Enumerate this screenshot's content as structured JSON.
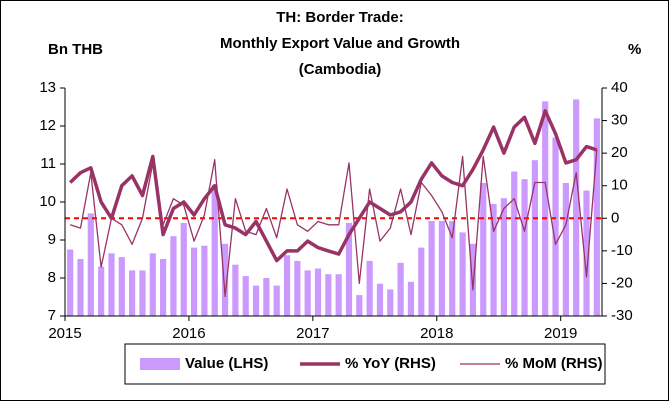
{
  "chart_data": {
    "type": "bar_line",
    "title": [
      "TH: Border Trade:",
      "Monthly Export Value and Growth",
      "(Cambodia)"
    ],
    "y_label": "Bn THB",
    "y2_label": "%",
    "categories": [
      "2015",
      null,
      null,
      null,
      null,
      null,
      null,
      null,
      null,
      null,
      null,
      null,
      "2016",
      null,
      null,
      null,
      null,
      null,
      null,
      null,
      null,
      null,
      null,
      null,
      "2017",
      null,
      null,
      null,
      null,
      null,
      null,
      null,
      null,
      null,
      null,
      null,
      "2018",
      null,
      null,
      null,
      null,
      null,
      null,
      null,
      null,
      null,
      null,
      null,
      "2019",
      null,
      null,
      null
    ],
    "series": [
      {
        "name": "Value (LHS)",
        "kind": "bar",
        "color": "#cc99ff",
        "values": [
          8.75,
          8.5,
          9.7,
          8.3,
          8.65,
          8.55,
          8.2,
          8.2,
          8.65,
          8.5,
          9.1,
          9.45,
          8.8,
          8.85,
          10.45,
          8.9,
          8.35,
          8.05,
          7.8,
          8.0,
          7.8,
          8.6,
          8.45,
          8.2,
          8.25,
          8.1,
          8.1,
          9.45,
          7.55,
          8.45,
          7.85,
          7.7,
          8.4,
          7.9,
          8.8,
          9.5,
          9.5,
          9.5,
          9.2,
          8.9,
          10.5,
          9.95,
          10.1,
          10.8,
          10.6,
          11.1,
          12.65,
          11.7,
          10.5,
          12.7,
          10.3,
          12.2
        ]
      },
      {
        "name": "% YoY (RHS)",
        "kind": "line",
        "axis": "y2",
        "color": "#993366",
        "width": 3.5,
        "values": [
          11,
          14,
          15.5,
          5,
          0,
          10,
          13,
          7,
          19,
          -5,
          3,
          5,
          1,
          6,
          10,
          -2,
          -3,
          -5,
          -1,
          -7,
          -13,
          -10,
          -10,
          -7,
          -9,
          -10,
          -11,
          -5,
          0,
          5,
          3,
          1,
          2,
          5,
          12,
          17,
          13,
          11,
          10,
          15,
          21,
          28,
          20,
          28,
          31,
          23,
          33,
          26,
          17,
          18,
          22,
          21
        ]
      },
      {
        "name": "% MoM (RHS)",
        "kind": "line",
        "axis": "y2",
        "color": "#993366",
        "width": 1.3,
        "values": [
          -2,
          -3,
          14,
          -15,
          0,
          -2,
          -8,
          0,
          17,
          -2,
          6,
          4,
          -7,
          1,
          18,
          -24,
          6,
          -4,
          -5,
          3,
          -6,
          9,
          -2,
          -4,
          -1,
          -2,
          -2,
          17,
          -20,
          9,
          -7,
          -3,
          9,
          -5,
          11,
          7,
          2,
          -6,
          19,
          -22,
          19,
          -4,
          3,
          6,
          -4,
          11,
          11,
          -8,
          -2,
          14,
          -18,
          21
        ]
      }
    ],
    "ylim": [
      7,
      13
    ],
    "yticks": [
      7,
      8,
      9,
      10,
      11,
      12,
      13
    ],
    "y2lim": [
      -30,
      40
    ],
    "y2ticks": [
      -30,
      -20,
      -10,
      0,
      10,
      20,
      30,
      40
    ],
    "y2_reference": 0,
    "reference_color": "#ff0000"
  }
}
